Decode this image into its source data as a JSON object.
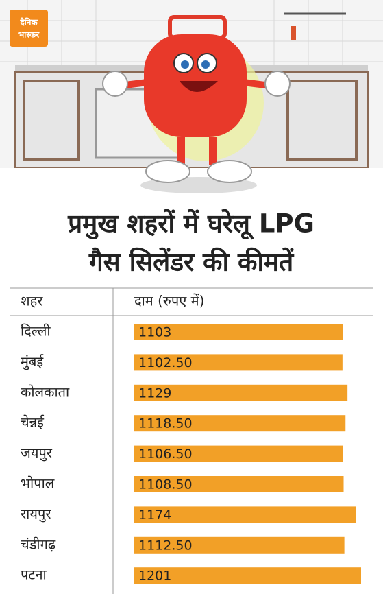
{
  "logo": [
    "दैनिक",
    "भास्कर"
  ],
  "chart_data": {
    "type": "bar",
    "orientation": "horizontal",
    "title": [
      "प्रमुख शहरों में घरेलू LPG",
      "गैस सिलेंडर की कीमतें"
    ],
    "category_header": "शहर",
    "value_header": "दाम (रुपए में)",
    "categories": [
      "दिल्ली",
      "मुंबई",
      "कोलकाता",
      "चेन्नई",
      "जयपुर",
      "भोपाल",
      "रायपुर",
      "चंडीगढ़",
      "पटना"
    ],
    "values": [
      1103,
      1102.5,
      1129,
      1118.5,
      1106.5,
      1108.5,
      1174,
      1112.5,
      1201
    ],
    "value_labels": [
      "1103",
      "1102.50",
      "1129",
      "1118.50",
      "1106.50",
      "1108.50",
      "1174",
      "1112.50",
      "1201"
    ],
    "color": "#f2a027",
    "xlim": [
      0,
      1201
    ]
  }
}
